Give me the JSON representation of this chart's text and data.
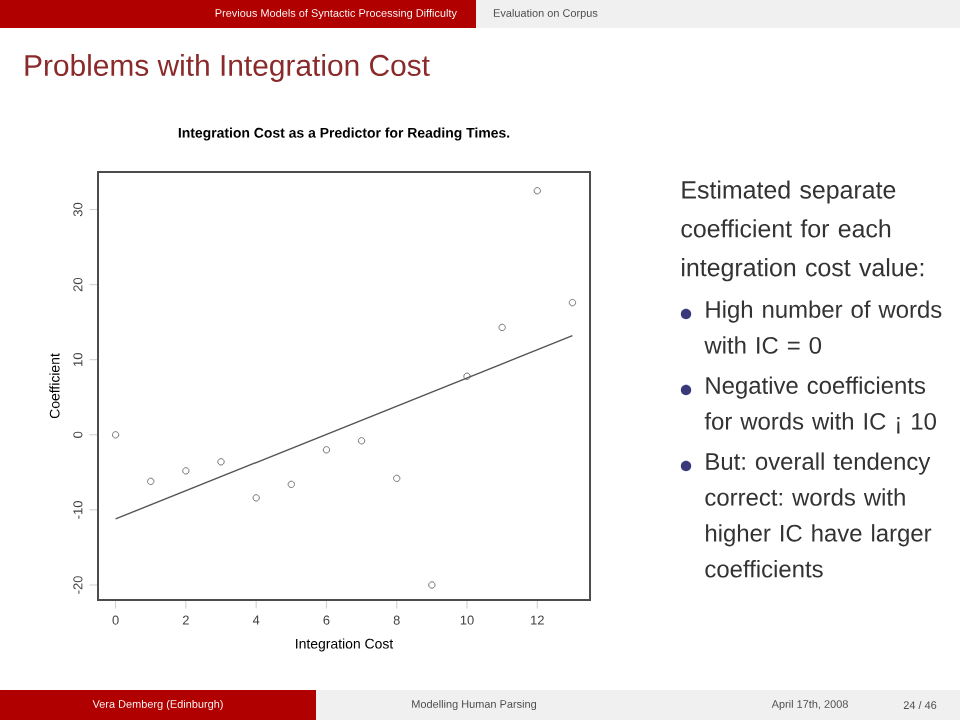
{
  "chart_data": {
    "type": "scatter",
    "title": "Integration Cost as a Predictor for Reading Times.",
    "xlabel": "Integration Cost",
    "ylabel": "Coefficient",
    "annotations": [
      "Previous Models of Syntactic Processing Difficulty",
      "Evaluation on Corpus",
      "Problems with Integration Cost",
      "Estimated separate coefficient for each integration cost value:",
      "High number of words with IC = 0",
      "Negative coefficients for words with IC ¡ 10",
      "But: overall tendency correct: words with higher IC have larger coefficients",
      "Vera Demberg (Edinburgh)",
      "Modelling Human Parsing",
      "April 17th, 2008",
      "24 / 46"
    ],
    "x": [
      0,
      1,
      2,
      3,
      4,
      5,
      6,
      7,
      8,
      9,
      10,
      11,
      12,
      13
    ],
    "series": [
      {
        "marker": "circle",
        "color": "#555555",
        "values": [
          0,
          -6.2,
          -4.8,
          -3.6,
          -8.4,
          -6.6,
          -2.0,
          -0.8,
          -5.8,
          -20,
          7.8,
          14.3,
          32.5,
          17.6
        ]
      },
      {
        "type": "line",
        "color": "#555555",
        "x": [
          0,
          13
        ],
        "values": [
          -11.2,
          13.2
        ]
      }
    ],
    "xlim": [
      -0.5,
      13.5
    ],
    "ylim": [
      -22,
      35
    ],
    "xticks": [
      0,
      2,
      4,
      6,
      8,
      10,
      12
    ],
    "yticks": [
      -20,
      -10,
      0,
      10,
      20,
      30
    ],
    "grid": false
  }
}
